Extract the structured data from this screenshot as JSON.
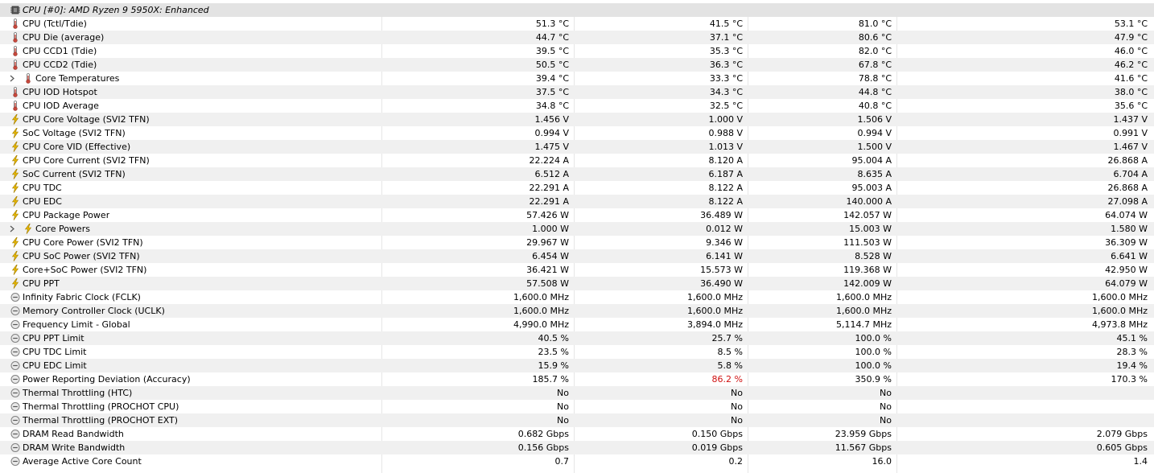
{
  "header": {
    "label": "CPU [#0]: AMD Ryzen 9 5950X: Enhanced",
    "icon": "chip-icon"
  },
  "rows": [
    {
      "label": "CPU (Tctl/Tdie)",
      "icon": "thermometer-icon",
      "values": [
        "51.3 °C",
        "41.5 °C",
        "81.0 °C",
        "53.1 °C"
      ]
    },
    {
      "label": "CPU Die (average)",
      "icon": "thermometer-icon",
      "values": [
        "44.7 °C",
        "37.1 °C",
        "80.6 °C",
        "47.9 °C"
      ]
    },
    {
      "label": "CPU CCD1 (Tdie)",
      "icon": "thermometer-icon",
      "values": [
        "39.5 °C",
        "35.3 °C",
        "82.0 °C",
        "46.0 °C"
      ]
    },
    {
      "label": "CPU CCD2 (Tdie)",
      "icon": "thermometer-icon",
      "values": [
        "50.5 °C",
        "36.3 °C",
        "67.8 °C",
        "46.2 °C"
      ]
    },
    {
      "label": "Core Temperatures",
      "icon": "thermometer-icon",
      "group": true,
      "values": [
        "39.4 °C",
        "33.3 °C",
        "78.8 °C",
        "41.6 °C"
      ]
    },
    {
      "label": "CPU IOD Hotspot",
      "icon": "thermometer-icon",
      "values": [
        "37.5 °C",
        "34.3 °C",
        "44.8 °C",
        "38.0 °C"
      ]
    },
    {
      "label": "CPU IOD Average",
      "icon": "thermometer-icon",
      "values": [
        "34.8 °C",
        "32.5 °C",
        "40.8 °C",
        "35.6 °C"
      ]
    },
    {
      "label": "CPU Core Voltage (SVI2 TFN)",
      "icon": "lightning-icon",
      "values": [
        "1.456 V",
        "1.000 V",
        "1.506 V",
        "1.437 V"
      ]
    },
    {
      "label": "SoC Voltage (SVI2 TFN)",
      "icon": "lightning-icon",
      "values": [
        "0.994 V",
        "0.988 V",
        "0.994 V",
        "0.991 V"
      ]
    },
    {
      "label": "CPU Core VID (Effective)",
      "icon": "lightning-icon",
      "values": [
        "1.475 V",
        "1.013 V",
        "1.500 V",
        "1.467 V"
      ]
    },
    {
      "label": "CPU Core Current (SVI2 TFN)",
      "icon": "lightning-icon",
      "values": [
        "22.224 A",
        "8.120 A",
        "95.004 A",
        "26.868 A"
      ]
    },
    {
      "label": "SoC Current (SVI2 TFN)",
      "icon": "lightning-icon",
      "values": [
        "6.512 A",
        "6.187 A",
        "8.635 A",
        "6.704 A"
      ]
    },
    {
      "label": "CPU TDC",
      "icon": "lightning-icon",
      "values": [
        "22.291 A",
        "8.122 A",
        "95.003 A",
        "26.868 A"
      ]
    },
    {
      "label": "CPU EDC",
      "icon": "lightning-icon",
      "values": [
        "22.291 A",
        "8.122 A",
        "140.000 A",
        "27.098 A"
      ]
    },
    {
      "label": "CPU Package Power",
      "icon": "lightning-icon",
      "values": [
        "57.426 W",
        "36.489 W",
        "142.057 W",
        "64.074 W"
      ]
    },
    {
      "label": "Core Powers",
      "icon": "lightning-icon",
      "group": true,
      "values": [
        "1.000 W",
        "0.012 W",
        "15.003 W",
        "1.580 W"
      ]
    },
    {
      "label": "CPU Core Power (SVI2 TFN)",
      "icon": "lightning-icon",
      "values": [
        "29.967 W",
        "9.346 W",
        "111.503 W",
        "36.309 W"
      ]
    },
    {
      "label": "CPU SoC Power (SVI2 TFN)",
      "icon": "lightning-icon",
      "values": [
        "6.454 W",
        "6.141 W",
        "8.528 W",
        "6.641 W"
      ]
    },
    {
      "label": "Core+SoC Power (SVI2 TFN)",
      "icon": "lightning-icon",
      "values": [
        "36.421 W",
        "15.573 W",
        "119.368 W",
        "42.950 W"
      ]
    },
    {
      "label": "CPU PPT",
      "icon": "lightning-icon",
      "values": [
        "57.508 W",
        "36.490 W",
        "142.009 W",
        "64.079 W"
      ]
    },
    {
      "label": "Infinity Fabric Clock (FCLK)",
      "icon": "gauge-icon",
      "values": [
        "1,600.0 MHz",
        "1,600.0 MHz",
        "1,600.0 MHz",
        "1,600.0 MHz"
      ]
    },
    {
      "label": "Memory Controller Clock (UCLK)",
      "icon": "gauge-icon",
      "values": [
        "1,600.0 MHz",
        "1,600.0 MHz",
        "1,600.0 MHz",
        "1,600.0 MHz"
      ]
    },
    {
      "label": "Frequency Limit - Global",
      "icon": "gauge-icon",
      "values": [
        "4,990.0 MHz",
        "3,894.0 MHz",
        "5,114.7 MHz",
        "4,973.8 MHz"
      ]
    },
    {
      "label": "CPU PPT Limit",
      "icon": "gauge-icon",
      "values": [
        "40.5 %",
        "25.7 %",
        "100.0 %",
        "45.1 %"
      ]
    },
    {
      "label": "CPU TDC Limit",
      "icon": "gauge-icon",
      "values": [
        "23.5 %",
        "8.5 %",
        "100.0 %",
        "28.3 %"
      ]
    },
    {
      "label": "CPU EDC Limit",
      "icon": "gauge-icon",
      "values": [
        "15.9 %",
        "5.8 %",
        "100.0 %",
        "19.4 %"
      ]
    },
    {
      "label": "Power Reporting Deviation (Accuracy)",
      "icon": "gauge-icon",
      "values": [
        "185.7 %",
        "86.2 %",
        "350.9 %",
        "170.3 %"
      ],
      "red": [
        1
      ]
    },
    {
      "label": "Thermal Throttling (HTC)",
      "icon": "gauge-icon",
      "values": [
        "No",
        "No",
        "No",
        ""
      ]
    },
    {
      "label": "Thermal Throttling (PROCHOT CPU)",
      "icon": "gauge-icon",
      "values": [
        "No",
        "No",
        "No",
        ""
      ]
    },
    {
      "label": "Thermal Throttling (PROCHOT EXT)",
      "icon": "gauge-icon",
      "values": [
        "No",
        "No",
        "No",
        ""
      ]
    },
    {
      "label": "DRAM Read Bandwidth",
      "icon": "gauge-icon",
      "values": [
        "0.682 Gbps",
        "0.150 Gbps",
        "23.959 Gbps",
        "2.079 Gbps"
      ]
    },
    {
      "label": "DRAM Write Bandwidth",
      "icon": "gauge-icon",
      "values": [
        "0.156 Gbps",
        "0.019 Gbps",
        "11.567 Gbps",
        "0.605 Gbps"
      ]
    },
    {
      "label": "Average Active Core Count",
      "icon": "gauge-icon",
      "values": [
        "0.7",
        "0.2",
        "16.0",
        "1.4"
      ]
    }
  ],
  "colors": {
    "alt_row": "#f0f0f0",
    "header_row": "#e3e3e3",
    "warning_value": "#d01010",
    "thermometer": "#c8483c",
    "lightning": "#e8b800",
    "gauge": "#808080"
  }
}
